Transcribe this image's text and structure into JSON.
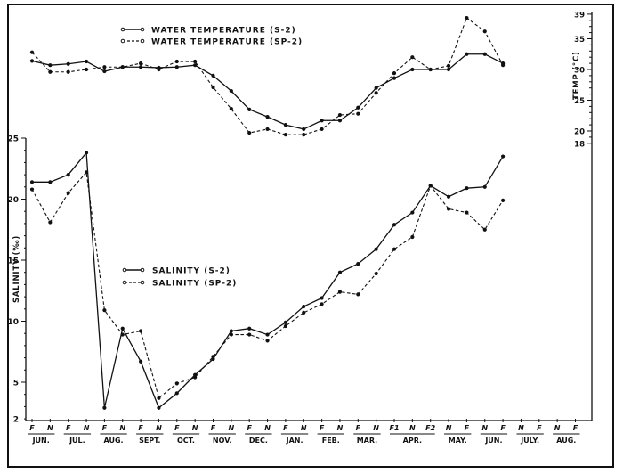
{
  "chart_data": [
    {
      "type": "line",
      "title": "",
      "panel": "water temperature",
      "ylabel": "TEMP (°C)",
      "y_axis_side": "right",
      "yticks": [
        18,
        20,
        25,
        30,
        35,
        39
      ],
      "ylim": [
        18,
        39
      ],
      "categories": [
        "JUN F",
        "JUN N",
        "JUL F",
        "JUL N",
        "AUG F",
        "AUG N",
        "SEPT F",
        "SEPT N",
        "OCT F",
        "OCT N",
        "NOV F",
        "NOV N",
        "DEC F",
        "DEC N",
        "JAN F",
        "JAN N",
        "FEB F",
        "FEB N",
        "MAR F",
        "MAR N",
        "APR F1",
        "APR N",
        "APR F2",
        "MAY N",
        "MAY F",
        "JUN N",
        "JUN F"
      ],
      "series": [
        {
          "name": "WATER TEMPERATURE (S-2)",
          "style": "solid",
          "values": [
            31.4,
            30.7,
            30.9,
            31.3,
            29.7,
            30.4,
            30.4,
            30.3,
            30.4,
            30.7,
            29.0,
            26.5,
            23.5,
            22.3,
            21.0,
            20.3,
            21.7,
            21.7,
            23.8,
            27.0,
            28.6,
            30.0,
            30.0,
            30.0,
            32.5,
            32.5,
            31.0
          ]
        },
        {
          "name": "WATER TEMPERATURE (SP-2)",
          "style": "dashed",
          "values": [
            32.8,
            29.6,
            29.6,
            30.0,
            30.4,
            30.4,
            31.0,
            30.0,
            31.3,
            31.3,
            27.1,
            23.6,
            19.7,
            20.3,
            19.4,
            19.4,
            20.3,
            22.6,
            22.8,
            26.2,
            29.4,
            32.0,
            30.0,
            30.6,
            38.4,
            36.2,
            30.7
          ]
        }
      ],
      "legend_position": "top-center"
    },
    {
      "type": "line",
      "title": "",
      "panel": "salinity",
      "ylabel": "SALINITY (‰)",
      "y_axis_side": "left",
      "yticks": [
        2,
        5,
        10,
        15,
        20,
        25
      ],
      "ylim": [
        2,
        25
      ],
      "categories": [
        "JUN F",
        "JUN N",
        "JUL F",
        "JUL N",
        "AUG F",
        "AUG N",
        "SEPT F",
        "SEPT N",
        "OCT F",
        "OCT N",
        "NOV F",
        "NOV N",
        "DEC F",
        "DEC N",
        "JAN F",
        "JAN N",
        "FEB F",
        "FEB N",
        "MAR F",
        "MAR N",
        "APR F1",
        "APR N",
        "APR F2",
        "MAY N",
        "MAY F",
        "JUN N",
        "JUN F"
      ],
      "series": [
        {
          "name": "SALINITY (S-2)",
          "style": "solid",
          "values": [
            21.4,
            21.4,
            22.0,
            23.8,
            2.9,
            9.4,
            6.7,
            2.9,
            4.1,
            5.6,
            6.9,
            9.2,
            9.4,
            8.9,
            9.9,
            11.2,
            11.9,
            14.0,
            14.7,
            15.9,
            17.9,
            18.9,
            21.1,
            20.2,
            20.9,
            21.0,
            23.5
          ]
        },
        {
          "name": "SALINITY (SP-2)",
          "style": "dashed",
          "values": [
            20.8,
            18.1,
            20.5,
            22.2,
            10.9,
            8.9,
            9.2,
            3.7,
            4.9,
            5.4,
            7.1,
            8.9,
            8.9,
            8.4,
            9.6,
            10.7,
            11.4,
            12.4,
            12.2,
            13.9,
            15.9,
            16.9,
            21.1,
            19.2,
            18.9,
            17.5,
            19.9
          ]
        }
      ],
      "legend_position": "middle-left"
    }
  ],
  "axis": {
    "x_ticks": [
      "F",
      "N",
      "F",
      "N",
      "F",
      "N",
      "F",
      "N",
      "F",
      "N",
      "F",
      "N",
      "F",
      "N",
      "F",
      "N",
      "F",
      "N",
      "F",
      "N",
      "F1",
      "N",
      "F2",
      "N",
      "F",
      "N",
      "F",
      "N",
      "F",
      "N",
      "F"
    ],
    "months": [
      {
        "label": "JUN.",
        "span": [
          0,
          1
        ]
      },
      {
        "label": "JUL.",
        "span": [
          2,
          3
        ]
      },
      {
        "label": "AUG.",
        "span": [
          4,
          5
        ]
      },
      {
        "label": "SEPT.",
        "span": [
          6,
          7
        ]
      },
      {
        "label": "OCT.",
        "span": [
          8,
          9
        ]
      },
      {
        "label": "NOV.",
        "span": [
          10,
          11
        ]
      },
      {
        "label": "DEC.",
        "span": [
          12,
          13
        ]
      },
      {
        "label": "JAN.",
        "span": [
          14,
          15
        ]
      },
      {
        "label": "FEB.",
        "span": [
          16,
          17
        ]
      },
      {
        "label": "MAR.",
        "span": [
          18,
          19
        ]
      },
      {
        "label": "APR.",
        "span": [
          20,
          22
        ]
      },
      {
        "label": "MAY.",
        "span": [
          23,
          24
        ]
      },
      {
        "label": "JUN.",
        "span": [
          25,
          26
        ]
      },
      {
        "label": "JULY.",
        "span": [
          27,
          28
        ]
      },
      {
        "label": "AUG.",
        "span": [
          29,
          30
        ]
      }
    ],
    "temp_label": "TEMP (°C)",
    "salinity_label": "SALINITY (‰)"
  },
  "legend": {
    "temp_s2": "WATER TEMPERATURE (S-2)",
    "temp_sp2": "WATER TEMPERATURE (SP-2)",
    "sal_s2": "SALINITY (S-2)",
    "sal_sp2": "SALINITY (SP-2)"
  },
  "colors": {
    "ink": "#111111",
    "background": "#ffffff"
  }
}
